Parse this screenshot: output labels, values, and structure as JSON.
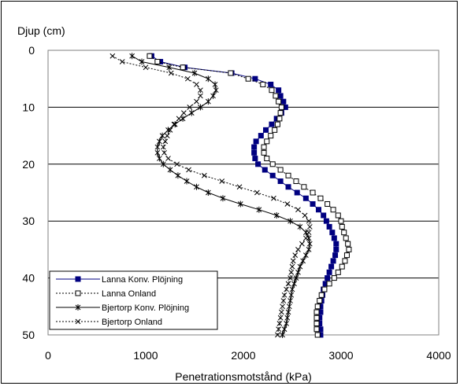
{
  "chart_data": {
    "type": "scatter",
    "title": "",
    "ylabel": "Djup (cm)",
    "xlabel": "Penetrationsmotstånd (kPa)",
    "xlim": [
      0,
      4000
    ],
    "ylim": [
      0,
      50
    ],
    "y_inverted": true,
    "xticks": [
      0,
      1000,
      2000,
      3000,
      4000
    ],
    "yticks": [
      0,
      10,
      20,
      30,
      40,
      50
    ],
    "grid": "horizontal",
    "legend_position": "bottom-left",
    "series": [
      {
        "name": "Lanna Konv. Plöjning",
        "line": "solid",
        "marker": "filled-square",
        "color": "#000080",
        "points": [
          [
            1060,
            1
          ],
          [
            1150,
            2
          ],
          [
            1400,
            3
          ],
          [
            1880,
            4
          ],
          [
            2120,
            5
          ],
          [
            2280,
            6
          ],
          [
            2360,
            7
          ],
          [
            2380,
            8
          ],
          [
            2410,
            9
          ],
          [
            2430,
            10
          ],
          [
            2390,
            11
          ],
          [
            2340,
            12
          ],
          [
            2290,
            13
          ],
          [
            2230,
            14
          ],
          [
            2180,
            15
          ],
          [
            2130,
            16
          ],
          [
            2110,
            17
          ],
          [
            2110,
            18
          ],
          [
            2120,
            19
          ],
          [
            2150,
            20
          ],
          [
            2220,
            21
          ],
          [
            2300,
            22
          ],
          [
            2380,
            23
          ],
          [
            2460,
            24
          ],
          [
            2550,
            25
          ],
          [
            2640,
            26
          ],
          [
            2710,
            27
          ],
          [
            2770,
            28
          ],
          [
            2820,
            29
          ],
          [
            2850,
            30
          ],
          [
            2880,
            31
          ],
          [
            2910,
            32
          ],
          [
            2930,
            33
          ],
          [
            2950,
            34
          ],
          [
            2950,
            35
          ],
          [
            2940,
            36
          ],
          [
            2920,
            37
          ],
          [
            2900,
            38
          ],
          [
            2880,
            39
          ],
          [
            2860,
            40
          ],
          [
            2840,
            41
          ],
          [
            2820,
            42
          ],
          [
            2810,
            43
          ],
          [
            2800,
            44
          ],
          [
            2790,
            45
          ],
          [
            2790,
            46
          ],
          [
            2780,
            47
          ],
          [
            2780,
            48
          ],
          [
            2790,
            49
          ],
          [
            2790,
            50
          ]
        ]
      },
      {
        "name": "Lanna Onland",
        "line": "dotted",
        "marker": "open-square",
        "color": "#000000",
        "points": [
          [
            1040,
            1
          ],
          [
            1120,
            2
          ],
          [
            1380,
            3
          ],
          [
            1870,
            4
          ],
          [
            2050,
            5
          ],
          [
            2200,
            6
          ],
          [
            2290,
            7
          ],
          [
            2330,
            8
          ],
          [
            2360,
            9
          ],
          [
            2390,
            10
          ],
          [
            2380,
            11
          ],
          [
            2370,
            12
          ],
          [
            2350,
            13
          ],
          [
            2320,
            14
          ],
          [
            2280,
            15
          ],
          [
            2240,
            16
          ],
          [
            2210,
            17
          ],
          [
            2210,
            18
          ],
          [
            2240,
            19
          ],
          [
            2300,
            20
          ],
          [
            2380,
            21
          ],
          [
            2460,
            22
          ],
          [
            2540,
            23
          ],
          [
            2620,
            24
          ],
          [
            2710,
            25
          ],
          [
            2790,
            26
          ],
          [
            2860,
            27
          ],
          [
            2920,
            28
          ],
          [
            2970,
            29
          ],
          [
            3000,
            30
          ],
          [
            3010,
            31
          ],
          [
            3030,
            32
          ],
          [
            3050,
            33
          ],
          [
            3070,
            34
          ],
          [
            3080,
            35
          ],
          [
            3060,
            36
          ],
          [
            3040,
            37
          ],
          [
            3010,
            38
          ],
          [
            2970,
            39
          ],
          [
            2930,
            40
          ],
          [
            2880,
            41
          ],
          [
            2830,
            42
          ],
          [
            2800,
            43
          ],
          [
            2780,
            44
          ],
          [
            2760,
            45
          ],
          [
            2750,
            46
          ],
          [
            2750,
            47
          ],
          [
            2750,
            48
          ],
          [
            2750,
            49
          ],
          [
            2760,
            50
          ]
        ]
      },
      {
        "name": "Bjertorp Konv. Plöjning",
        "line": "solid",
        "marker": "star",
        "color": "#000000",
        "points": [
          [
            860,
            1
          ],
          [
            960,
            2
          ],
          [
            1240,
            3
          ],
          [
            1500,
            4
          ],
          [
            1640,
            5
          ],
          [
            1710,
            6
          ],
          [
            1720,
            7
          ],
          [
            1690,
            8
          ],
          [
            1640,
            9
          ],
          [
            1560,
            10
          ],
          [
            1470,
            11
          ],
          [
            1380,
            12
          ],
          [
            1300,
            13
          ],
          [
            1230,
            14
          ],
          [
            1170,
            15
          ],
          [
            1140,
            16
          ],
          [
            1120,
            17
          ],
          [
            1120,
            18
          ],
          [
            1140,
            19
          ],
          [
            1180,
            20
          ],
          [
            1250,
            21
          ],
          [
            1330,
            22
          ],
          [
            1420,
            23
          ],
          [
            1520,
            24
          ],
          [
            1640,
            25
          ],
          [
            1790,
            26
          ],
          [
            1970,
            27
          ],
          [
            2160,
            28
          ],
          [
            2340,
            29
          ],
          [
            2480,
            30
          ],
          [
            2580,
            31
          ],
          [
            2640,
            32
          ],
          [
            2670,
            33
          ],
          [
            2680,
            34
          ],
          [
            2670,
            35
          ],
          [
            2640,
            36
          ],
          [
            2610,
            37
          ],
          [
            2580,
            38
          ],
          [
            2560,
            39
          ],
          [
            2540,
            40
          ],
          [
            2520,
            41
          ],
          [
            2500,
            42
          ],
          [
            2490,
            43
          ],
          [
            2480,
            44
          ],
          [
            2470,
            45
          ],
          [
            2460,
            46
          ],
          [
            2450,
            47
          ],
          [
            2440,
            48
          ],
          [
            2420,
            49
          ],
          [
            2400,
            50
          ]
        ]
      },
      {
        "name": "Bjertorp Onland",
        "line": "dotted",
        "marker": "x",
        "color": "#000000",
        "points": [
          [
            660,
            1
          ],
          [
            760,
            2
          ],
          [
            1000,
            3
          ],
          [
            1260,
            4
          ],
          [
            1430,
            5
          ],
          [
            1520,
            6
          ],
          [
            1560,
            7
          ],
          [
            1560,
            8
          ],
          [
            1520,
            9
          ],
          [
            1450,
            10
          ],
          [
            1390,
            11
          ],
          [
            1340,
            12
          ],
          [
            1290,
            13
          ],
          [
            1250,
            14
          ],
          [
            1220,
            15
          ],
          [
            1200,
            16
          ],
          [
            1180,
            17
          ],
          [
            1190,
            18
          ],
          [
            1230,
            19
          ],
          [
            1320,
            20
          ],
          [
            1440,
            21
          ],
          [
            1600,
            22
          ],
          [
            1780,
            23
          ],
          [
            1960,
            24
          ],
          [
            2140,
            25
          ],
          [
            2310,
            26
          ],
          [
            2450,
            27
          ],
          [
            2560,
            28
          ],
          [
            2630,
            29
          ],
          [
            2670,
            30
          ],
          [
            2680,
            31
          ],
          [
            2670,
            32
          ],
          [
            2640,
            33
          ],
          [
            2600,
            34
          ],
          [
            2560,
            35
          ],
          [
            2530,
            36
          ],
          [
            2510,
            37
          ],
          [
            2500,
            38
          ],
          [
            2490,
            39
          ],
          [
            2480,
            40
          ],
          [
            2460,
            41
          ],
          [
            2440,
            42
          ],
          [
            2420,
            43
          ],
          [
            2410,
            44
          ],
          [
            2400,
            45
          ],
          [
            2390,
            46
          ],
          [
            2380,
            47
          ],
          [
            2370,
            48
          ],
          [
            2360,
            49
          ],
          [
            2350,
            50
          ]
        ]
      }
    ]
  }
}
